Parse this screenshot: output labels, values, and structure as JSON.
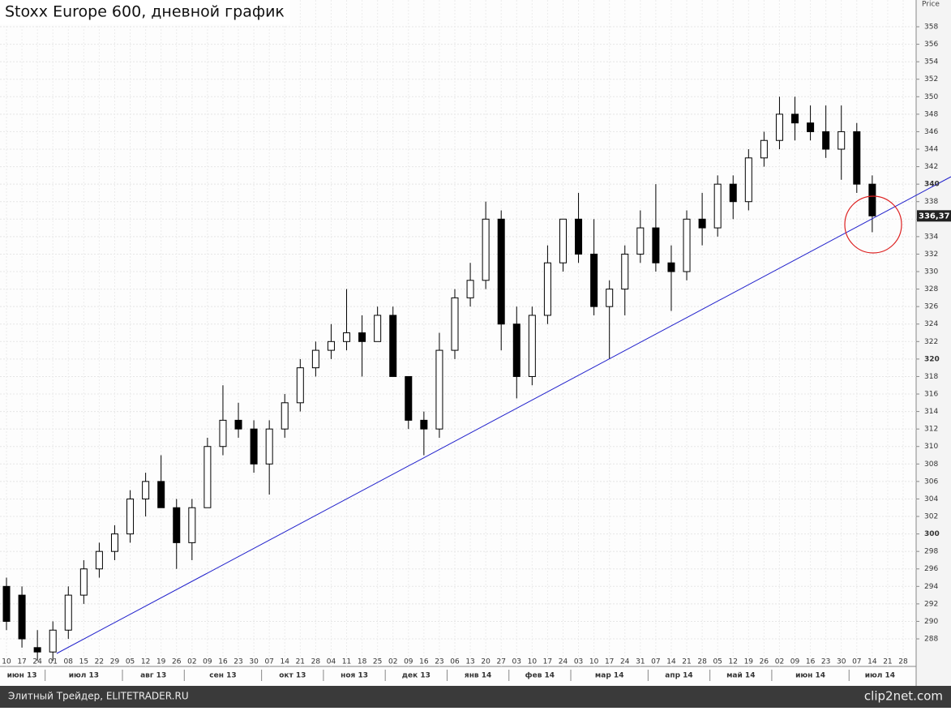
{
  "chart_data": {
    "type": "candlestick",
    "title": "Stoxx Europe 600, дневной график",
    "y_label": "Price",
    "categories": [
      "10",
      "17",
      "24",
      "01",
      "08",
      "15",
      "22",
      "29",
      "05",
      "12",
      "19",
      "26",
      "02",
      "09",
      "16",
      "23",
      "30",
      "07",
      "14",
      "21",
      "28",
      "04",
      "11",
      "18",
      "25",
      "02",
      "09",
      "16",
      "23",
      "06",
      "13",
      "20",
      "27",
      "03",
      "10",
      "17",
      "24",
      "03",
      "10",
      "17",
      "24",
      "31",
      "07",
      "14",
      "21",
      "28",
      "05",
      "12",
      "19",
      "26",
      "02",
      "09",
      "16",
      "23",
      "30",
      "07",
      "14",
      "21",
      "28"
    ],
    "months": [
      "июн 13",
      "июл 13",
      "авг 13",
      "сен 13",
      "окт 13",
      "ноя 13",
      "дек 13",
      "янв 14",
      "фев 14",
      "мар 14",
      "апр 14",
      "май 14",
      "июн 14",
      "июл 14"
    ],
    "open": [
      294,
      293,
      287,
      286.5,
      289,
      293,
      296,
      298,
      300,
      304,
      306,
      303,
      299,
      303,
      310,
      313,
      312,
      308,
      312,
      315,
      319,
      321,
      322,
      323,
      322,
      325,
      318,
      313,
      312,
      321,
      327,
      329,
      336,
      324,
      318,
      325,
      331,
      336,
      332,
      326,
      328,
      332,
      335,
      331,
      330,
      336,
      335,
      340,
      338,
      343,
      345,
      348,
      347,
      346,
      344,
      346,
      340,
      null,
      null
    ],
    "high": [
      295,
      294,
      289,
      290,
      294,
      297,
      299,
      301,
      305,
      307,
      309,
      304,
      304,
      311,
      317,
      315,
      313,
      313,
      316,
      320,
      322,
      324,
      328,
      325,
      326,
      326,
      318,
      314,
      323,
      328,
      331,
      338,
      337,
      326,
      326,
      333,
      336,
      339,
      336,
      329,
      333,
      337,
      340,
      333,
      337,
      339,
      341,
      341,
      344,
      346,
      350,
      350,
      349,
      349,
      349,
      347,
      341,
      null,
      null
    ],
    "low": [
      289,
      287,
      285.5,
      285.5,
      288,
      292,
      295,
      297,
      299,
      302,
      303,
      296,
      297,
      303,
      309,
      311,
      307,
      304.5,
      311,
      314,
      318,
      320,
      321,
      318,
      322,
      318,
      312,
      309,
      311,
      320,
      326,
      328,
      321,
      315.5,
      317,
      324,
      330,
      331,
      325,
      320,
      325,
      331,
      330,
      325.5,
      329,
      333,
      334,
      336,
      337,
      342,
      344,
      345,
      345,
      343,
      340.5,
      339,
      334.5,
      null,
      null
    ],
    "close": [
      290,
      288,
      286.5,
      289,
      293,
      296,
      298,
      300,
      304,
      306,
      303,
      299,
      303,
      310,
      313,
      312,
      308,
      312,
      315,
      319,
      321,
      322,
      323,
      322,
      325,
      318,
      313,
      312,
      321,
      327,
      329,
      336,
      324,
      318,
      325,
      331,
      336,
      332,
      326,
      328,
      332,
      335,
      331,
      330,
      336,
      335,
      340,
      338,
      343,
      345,
      348,
      347,
      346,
      344,
      346,
      340,
      336.37,
      null,
      null
    ],
    "up_color": "#ffffff",
    "down_color": "#000000",
    "edge_color": "#000000",
    "last_price": {
      "value": 336.37,
      "label": "336,37"
    },
    "ylim": [
      284.85,
      361.06
    ],
    "yticks": [
      288,
      290,
      292,
      294,
      296,
      298,
      300,
      302,
      304,
      306,
      308,
      310,
      312,
      314,
      316,
      318,
      320,
      322,
      324,
      326,
      328,
      330,
      332,
      334,
      336,
      338,
      340,
      342,
      344,
      346,
      348,
      350,
      352,
      354,
      356,
      358
    ],
    "major_yticks": [
      300,
      320,
      340
    ],
    "grid": true
  },
  "footer": {
    "left": "Элитный Трейдер, ELITETRADER.RU",
    "right": "clip2net.com"
  }
}
